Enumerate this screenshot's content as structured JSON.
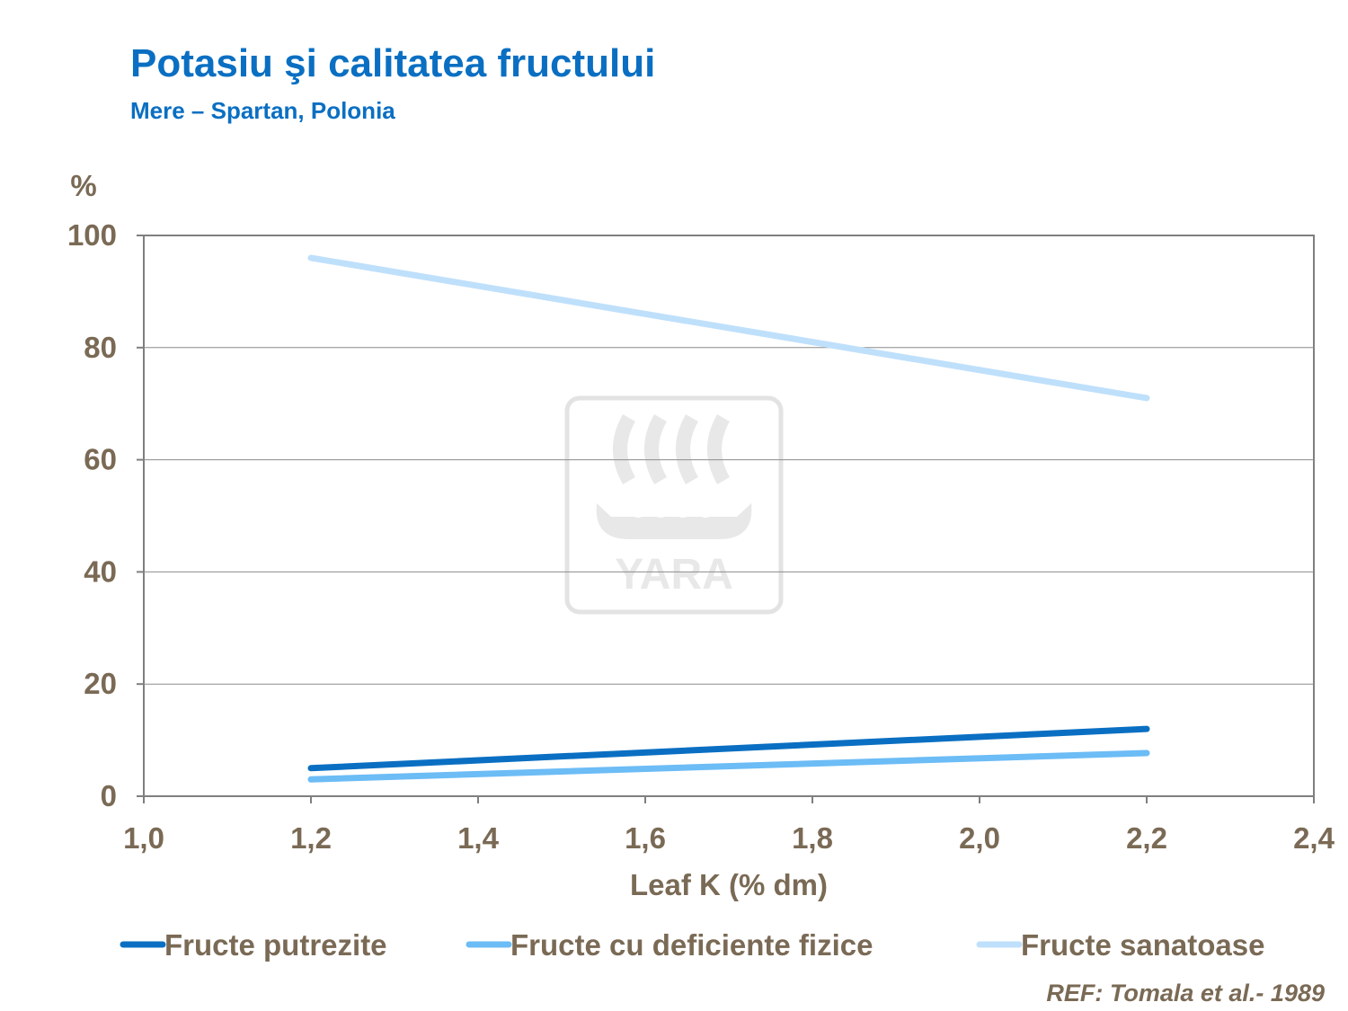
{
  "header": {
    "title": "Potasiu şi calitatea fructului",
    "subtitle": "Mere – Spartan, Polonia"
  },
  "reference": "REF: Tomala et al.- 1989",
  "watermark": {
    "text": "YARA",
    "icon": "yara-viking-ship-logo"
  },
  "colors": {
    "series_dark": "#0a6fc2",
    "series_mid": "#6cbcf6",
    "series_light": "#bfe0fb",
    "text": "#7a6a55",
    "title": "#0a6fc2"
  },
  "chart_data": {
    "type": "line",
    "xlabel": "Leaf K (% dm)",
    "ylabel": "%",
    "xlim": [
      1.0,
      2.4
    ],
    "ylim": [
      0,
      100
    ],
    "xticks": [
      "1,0",
      "1,2",
      "1,4",
      "1,6",
      "1,8",
      "2,0",
      "2,2",
      "2,4"
    ],
    "yticks": [
      "0",
      "20",
      "40",
      "60",
      "80",
      "100"
    ],
    "grid": "horizontal",
    "legend_position": "bottom",
    "series": [
      {
        "name": "Fructe putrezite",
        "color": "#0a6fc2",
        "x": [
          1.2,
          2.2
        ],
        "y": [
          5,
          12
        ]
      },
      {
        "name": "Fructe cu deficiente fizice",
        "color": "#6cbcf6",
        "x": [
          1.2,
          2.2
        ],
        "y": [
          3,
          7.7
        ]
      },
      {
        "name": "Fructe sanatoase",
        "color": "#bfe0fb",
        "x": [
          1.2,
          2.2
        ],
        "y": [
          96,
          71
        ]
      }
    ]
  }
}
